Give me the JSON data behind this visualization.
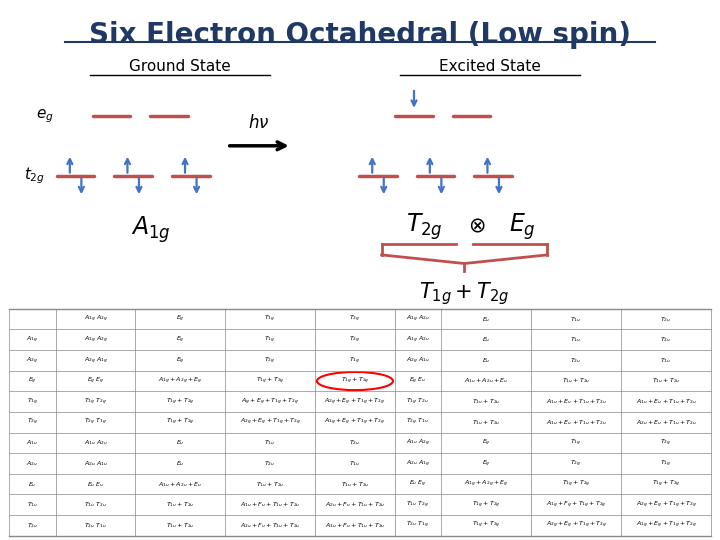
{
  "title": "Six Electron Octahedral (Low spin)",
  "title_color": "#1F3864",
  "title_fontsize": 20,
  "ground_state_label": "Ground State",
  "excited_state_label": "Excited State",
  "label_fontsize": 11,
  "bar_color": "#C0504D",
  "arrow_color": "#4472C4",
  "brace_color": "#C0504D",
  "bg_color": "#FFFFFF",
  "table_rows": [
    [
      "A_{1g}",
      "A_{1g}\\ A_{2g}",
      "E_g",
      "T_{1g}",
      "T_{2g}",
      "A_{1g}\\ A_{2u}",
      "E_u",
      "T_{1u}",
      "T_{2u}"
    ],
    [
      "A_{2g}",
      "A_{2g}\\ A_{1g}",
      "E_g",
      "T_{2g}",
      "T_{1g}",
      "A_{2g}\\ A_{1u}",
      "E_u",
      "T_{2u}",
      "T_{1u}"
    ],
    [
      "E_g",
      "E_g\\ E_g",
      "A_{1g}+A_{2g}+E_g",
      "T_{1g}+T_{2g}",
      "T_{1g}+T_{2g}",
      "E_g\\ E_u",
      "A_{1u}+A_{2u}+E_u",
      "T_{1u}+T_{2u}",
      "T_{1u}+T_{2u}"
    ],
    [
      "T_{1g}",
      "T_{1g}\\ T_{2g}",
      "T_{1g}+T_{2g}",
      "A_g+E_g+T_{1g}+T_{2g}",
      "A_{2g}+E_g+T_{1g}+T_{2g}",
      "T_{1g}\\ T_{2u}",
      "T_{1u}+T_{2u}",
      "A_{1u}+E_u+T_{1u}+T_{2u}",
      "A_{1u}+E_u+T_{1u}+T_{2u}"
    ],
    [
      "T_{2g}",
      "T_{2g}\\ T_{1g}",
      "T_{1g}+T_{2g}",
      "A_{2g}+E_g+T_{1g}+T_{2g}",
      "A_{1g}+E_g+T_{1g}+T_{2g}",
      "T_{2g}\\ T_{1u}",
      "T_{1u}+T_{2u}",
      "A_{1u}+E_u+T_{1u}+T_{2u}",
      "A_{2u}+E_u+T_{1u}+T_{2u}"
    ],
    [
      "A_{1u}",
      "A_{1u}\\ A_{2u}",
      "E_u",
      "T_{1u}",
      "T_{2u}",
      "A_{1u}\\ A_{2g}",
      "E_g",
      "T_{1g}",
      "T_{2g}"
    ],
    [
      "A_{2u}",
      "A_{2u}\\ A_{1u}",
      "E_u",
      "T_{2u}",
      "T_{1u}",
      "A_{2u}\\ A_{1g}",
      "E_g",
      "T_{2g}",
      "T_{1g}"
    ],
    [
      "E_u",
      "E_u\\ E_u",
      "A_{1u}+A_{2u}+E_u",
      "T_{1u}+T_{2u}",
      "T_{1u}+T_{2u}",
      "E_u\\ E_g",
      "A_{1g}+A_{2g}+E_g",
      "T_{1g}+T_{2g}",
      "T_{1g}+T_{2g}"
    ],
    [
      "T_{1u}",
      "T_{1u}\\ T_{2u}",
      "T_{1u}+T_{2u}",
      "A_{1u}+F_u+T_{1u}+T_{2u}",
      "A_{2u}+F_u+T_{1u}+T_{2u}",
      "T_{1u}\\ T_{2g}",
      "T_{1g}+T_{2g}",
      "A_{1g}+F_g+T_{1g}+T_{2g}",
      "A_{2g}+E_g+T_{1g}+T_{2g}"
    ],
    [
      "T_{2u}",
      "T_{2u}\\ T_{1u}",
      "T_{1u}+T_{2u}",
      "A_{2u}+F_u+T_{1u}+T_{2u}",
      "A_{1u}+F_u+T_{1u}+T_{2u}",
      "T_{2u}\\ T_{1g}",
      "T_{1g}+T_{2g}",
      "A_{2g}+E_g+T_{1g}+T_{2g}",
      "A_{1g}+E_g+T_{1g}+T_{2g}"
    ]
  ],
  "table_headers": [
    "",
    "A_{1g}\\ A_{2g}",
    "E_g",
    "T_{1g}",
    "T_{2g}",
    "A_{1g}\\ A_{2u}",
    "E_u",
    "T_{1u}",
    "T_{2u}"
  ],
  "highlighted_cell": [
    2,
    4
  ],
  "highlight_color": "#FF0000"
}
